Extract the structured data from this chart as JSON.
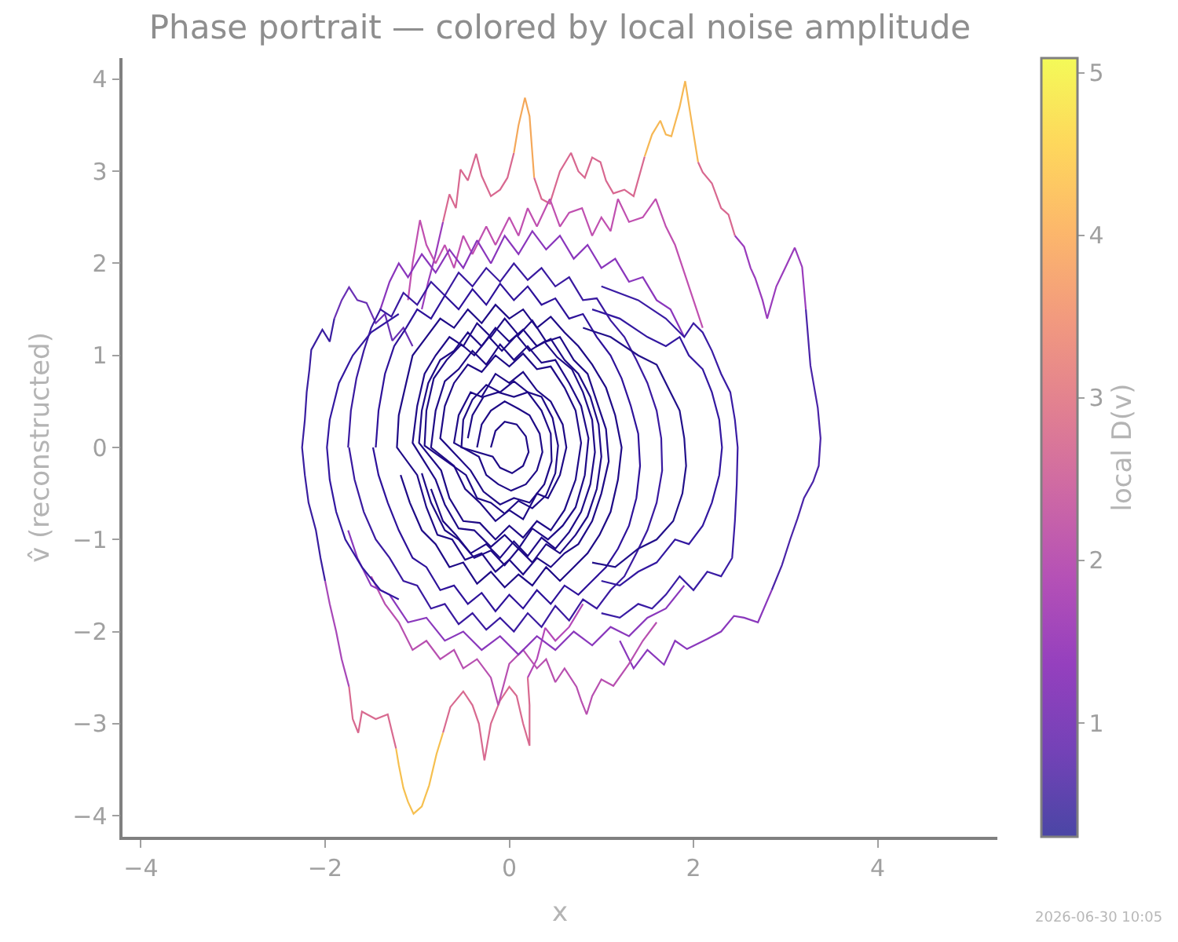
{
  "chart_data": {
    "type": "line",
    "title": "Phase portrait — colored by local noise amplitude",
    "xlabel": "x",
    "ylabel": "v̂ (reconstructed)",
    "clabel": "local D(v)",
    "clim": [
      0.3,
      5.09
    ],
    "cticks": [
      1,
      2,
      3,
      4,
      5
    ],
    "xlim": [
      -4.2,
      5.3
    ],
    "ylim": [
      -4.23,
      4.23
    ],
    "xticks": [
      -4,
      -2,
      0,
      2,
      4
    ],
    "yticks": [
      -4,
      -3,
      -2,
      -1,
      0,
      1,
      2,
      3,
      4
    ],
    "annotations": [
      "2026-06-30 10:05"
    ],
    "series": [
      {
        "color": "#a848b8",
        "x": [
          -1.74,
          -1.82,
          -1.88,
          -1.95,
          -2.0
        ],
        "values": [
          -2.6,
          -2.3,
          -2.0,
          -1.7,
          -1.45
        ]
      },
      {
        "color": "#3a1ea0",
        "x": [
          -2.0,
          -2.05,
          -2.1,
          -2.18,
          -2.22,
          -2.25,
          -2.22,
          -2.2,
          -2.17,
          -2.15,
          -2.03,
          -1.95,
          -1.9
        ],
        "values": [
          -1.45,
          -1.2,
          -0.9,
          -0.6,
          -0.3,
          0.0,
          0.3,
          0.6,
          0.85,
          1.06,
          1.28,
          1.15,
          1.4
        ]
      },
      {
        "color": "#6a30b4",
        "x": [
          -1.9,
          -1.82,
          -1.74,
          -1.65,
          -1.55,
          -1.45,
          -1.35,
          -1.27,
          -1.15,
          -1.05
        ],
        "values": [
          1.4,
          1.6,
          1.74,
          1.6,
          1.57,
          1.35,
          1.45,
          1.16,
          1.3,
          1.1
        ]
      },
      {
        "color": "#9a3cbc",
        "x": [
          -0.95,
          -0.88,
          -0.8,
          -0.72
        ],
        "values": [
          1.5,
          1.8,
          2.1,
          2.45
        ]
      },
      {
        "color": "#d86890",
        "x": [
          -0.72,
          -0.65,
          -0.58,
          -0.53,
          -0.45,
          -0.36,
          -0.3,
          -0.2,
          -0.1,
          -0.02,
          0.05
        ],
        "values": [
          2.45,
          2.75,
          2.6,
          3.02,
          2.9,
          3.19,
          2.95,
          2.73,
          2.8,
          2.93,
          3.2
        ]
      },
      {
        "color": "#f4a85a",
        "x": [
          0.05,
          0.1,
          0.17,
          0.22,
          0.27
        ],
        "values": [
          3.2,
          3.5,
          3.8,
          3.6,
          2.93
        ]
      },
      {
        "color": "#d86890",
        "x": [
          0.27,
          0.35,
          0.44,
          0.55,
          0.67,
          0.75,
          0.82,
          0.9,
          0.99,
          1.05,
          1.13,
          1.25,
          1.35,
          1.47
        ],
        "values": [
          2.93,
          2.7,
          2.65,
          3.0,
          3.2,
          3.0,
          2.93,
          3.15,
          3.1,
          2.9,
          2.76,
          2.8,
          2.73,
          3.16
        ]
      },
      {
        "color": "#f6b855",
        "x": [
          1.47,
          1.55,
          1.64,
          1.7,
          1.76,
          1.85,
          1.91,
          1.97,
          2.05
        ],
        "values": [
          3.16,
          3.4,
          3.55,
          3.4,
          3.38,
          3.7,
          3.98,
          3.6,
          3.1
        ]
      },
      {
        "color": "#d86890",
        "x": [
          2.05,
          2.1,
          2.2,
          2.3,
          2.38,
          2.45
        ],
        "values": [
          3.1,
          2.99,
          2.87,
          2.6,
          2.53,
          2.3
        ]
      },
      {
        "color": "#9a3cbc",
        "x": [
          2.45,
          2.55,
          2.62,
          2.67,
          2.75,
          2.8,
          2.9,
          3.0,
          3.1,
          3.18,
          3.22
        ],
        "values": [
          2.3,
          2.18,
          1.95,
          1.84,
          1.6,
          1.4,
          1.75,
          1.96,
          2.17,
          1.96,
          1.5
        ]
      },
      {
        "color": "#4a24a8",
        "x": [
          3.22,
          3.27,
          3.35,
          3.38,
          3.36,
          3.3,
          3.2,
          3.13,
          3.05,
          2.96,
          2.85
        ],
        "values": [
          1.5,
          0.89,
          0.43,
          0.1,
          -0.2,
          -0.37,
          -0.55,
          -0.77,
          -1.0,
          -1.28,
          -1.55
        ]
      },
      {
        "color": "#8a38bc",
        "x": [
          2.85,
          2.7,
          2.55,
          2.44,
          2.3,
          2.15,
          1.93,
          1.8,
          1.68,
          1.5,
          1.35,
          1.2
        ],
        "values": [
          -1.55,
          -1.9,
          -1.85,
          -1.83,
          -2.0,
          -2.08,
          -2.19,
          -2.1,
          -2.36,
          -2.2,
          -2.4,
          -2.1
        ]
      },
      {
        "color": "#c050b0",
        "x": [
          -1.1,
          -1.05,
          -0.97,
          -0.9,
          -0.8,
          -0.7,
          -0.6,
          -0.5,
          -0.4,
          -0.25,
          -0.15,
          0.0,
          0.1,
          0.2,
          0.3,
          0.44,
          0.55,
          0.65,
          0.79,
          0.9,
          1.0,
          1.1,
          1.18,
          1.3,
          1.45,
          1.59,
          1.7,
          1.8,
          1.9,
          2.0,
          2.1
        ],
        "values": [
          1.6,
          2.0,
          2.47,
          2.2,
          2.0,
          2.2,
          1.95,
          2.3,
          2.1,
          2.4,
          2.2,
          2.5,
          2.3,
          2.6,
          2.4,
          2.7,
          2.4,
          2.55,
          2.6,
          2.3,
          2.5,
          2.35,
          2.7,
          2.45,
          2.5,
          2.7,
          2.4,
          2.2,
          1.9,
          1.6,
          1.3
        ]
      },
      {
        "color": "#8a36bc",
        "x": [
          -1.4,
          -1.3,
          -1.2,
          -1.1,
          -0.95,
          -0.8,
          -0.65,
          -0.5,
          -0.35,
          -0.2,
          -0.05,
          0.1,
          0.25,
          0.4,
          0.55,
          0.7,
          0.85,
          1.0,
          1.15,
          1.3,
          1.45,
          1.6,
          1.75,
          1.9
        ],
        "values": [
          1.5,
          1.8,
          2.0,
          1.85,
          2.1,
          1.9,
          2.15,
          1.95,
          2.25,
          2.0,
          2.3,
          2.1,
          2.35,
          2.15,
          2.3,
          2.05,
          2.2,
          1.95,
          2.05,
          1.8,
          1.85,
          1.6,
          1.5,
          1.2
        ]
      },
      {
        "color": "#b448b8",
        "x": [
          0.8,
          0.65,
          0.5,
          0.39,
          0.3,
          0.2
        ],
        "values": [
          -1.7,
          -1.95,
          -2.1,
          -1.96,
          -2.3,
          -2.5
        ]
      },
      {
        "color": "#d86a90",
        "x": [
          0.2,
          0.22,
          0.22,
          0.15,
          0.08,
          0.0,
          -0.1,
          -0.2,
          -0.27,
          -0.33,
          -0.4,
          -0.5,
          -0.64,
          -0.72
        ],
        "values": [
          -2.5,
          -2.8,
          -3.24,
          -3.0,
          -2.7,
          -2.6,
          -2.75,
          -3.0,
          -3.4,
          -3.0,
          -2.8,
          -2.65,
          -2.82,
          -3.1
        ]
      },
      {
        "color": "#f6c050",
        "x": [
          -0.72,
          -0.79,
          -0.87,
          -0.95,
          -1.04,
          -1.1,
          -1.15,
          -1.2,
          -1.23
        ],
        "values": [
          -3.1,
          -3.33,
          -3.67,
          -3.9,
          -3.98,
          -3.85,
          -3.7,
          -3.45,
          -3.27
        ]
      },
      {
        "color": "#d86a90",
        "x": [
          -1.23,
          -1.32,
          -1.45,
          -1.6,
          -1.64,
          -1.7,
          -1.74
        ],
        "values": [
          -3.27,
          -2.9,
          -2.95,
          -2.87,
          -3.1,
          -2.95,
          -2.6
        ]
      },
      {
        "color": "#b850b0",
        "x": [
          1.6,
          1.45,
          1.3,
          1.13,
          1.0,
          0.9,
          0.84,
          0.78,
          0.73,
          0.6,
          0.5,
          0.4,
          0.3,
          0.15,
          0.0,
          -0.12,
          -0.2,
          -0.35,
          -0.5,
          -0.6,
          -0.75,
          -0.9,
          -1.05,
          -1.2,
          -1.35,
          -1.5
        ],
        "values": [
          -1.9,
          -2.1,
          -2.35,
          -2.59,
          -2.52,
          -2.7,
          -2.9,
          -2.75,
          -2.6,
          -2.4,
          -2.55,
          -2.3,
          -2.4,
          -2.2,
          -2.35,
          -2.8,
          -2.5,
          -2.3,
          -2.4,
          -2.2,
          -2.3,
          -2.1,
          -2.2,
          -1.9,
          -1.7,
          -1.4
        ]
      },
      {
        "color": "#8a38bc",
        "x": [
          1.9,
          1.7,
          1.5,
          1.3,
          1.1,
          0.9,
          0.7,
          0.5,
          0.3,
          0.1,
          -0.1,
          -0.3,
          -0.5,
          -0.7,
          -0.9,
          -1.1,
          -1.3,
          -1.5,
          -1.65,
          -1.75
        ],
        "values": [
          -1.5,
          -1.75,
          -1.85,
          -2.05,
          -1.95,
          -2.15,
          -2.0,
          -2.2,
          -2.05,
          -2.25,
          -2.05,
          -2.2,
          -2.0,
          -2.1,
          -1.85,
          -1.9,
          -1.6,
          -1.5,
          -1.2,
          -0.9
        ]
      },
      {
        "color": "#3a1ca4",
        "x": [
          1.0,
          1.4,
          1.7,
          1.9,
          2.0,
          2.1,
          2.2,
          2.3,
          2.4,
          2.45,
          2.48,
          2.47,
          2.45,
          2.42,
          2.3,
          2.15,
          2.0,
          1.85,
          1.7,
          1.55,
          1.4,
          1.2,
          1.0
        ],
        "values": [
          1.75,
          1.6,
          1.4,
          1.2,
          1.35,
          1.25,
          1.05,
          0.8,
          0.6,
          0.3,
          0.0,
          -0.4,
          -0.8,
          -1.2,
          -1.4,
          -1.35,
          -1.55,
          -1.4,
          -1.6,
          -1.75,
          -1.7,
          -1.85,
          -1.8
        ]
      },
      {
        "color": "#3318a0",
        "x": [
          0.9,
          1.2,
          1.5,
          1.7,
          1.85,
          1.95,
          2.1,
          2.2,
          2.28,
          2.31,
          2.28,
          2.2,
          2.1,
          1.95,
          1.8,
          1.6,
          1.4,
          1.2,
          1.0
        ],
        "values": [
          1.5,
          1.4,
          1.2,
          1.1,
          1.2,
          1.0,
          0.85,
          0.6,
          0.3,
          0.0,
          -0.3,
          -0.6,
          -0.85,
          -1.05,
          -1.0,
          -1.25,
          -1.35,
          -1.5,
          -1.45
        ]
      },
      {
        "color": "#3318a0",
        "x": [
          -1.2,
          -1.5,
          -1.7,
          -1.85,
          -1.95,
          -1.98,
          -1.95,
          -1.88,
          -1.78,
          -1.6,
          -1.4,
          -1.2
        ],
        "values": [
          1.45,
          1.25,
          1.0,
          0.7,
          0.3,
          0.0,
          -0.35,
          -0.7,
          -1.0,
          -1.3,
          -1.55,
          -1.65
        ]
      },
      {
        "color": "#3a1aa0",
        "x": [
          -1.75,
          -1.72,
          -1.66,
          -1.58,
          -1.5,
          -1.4,
          -1.28,
          -1.15,
          -1.0,
          -0.85,
          -0.7,
          -0.55,
          -0.4,
          -0.25,
          -0.1,
          0.05,
          0.2,
          0.35,
          0.5,
          0.65,
          0.8,
          0.95,
          1.1,
          1.25,
          1.38,
          1.5,
          1.6,
          1.65,
          1.66,
          1.6,
          1.5,
          1.38,
          1.25,
          1.1,
          0.95,
          0.8,
          0.65,
          0.5,
          0.35,
          0.2,
          0.05,
          -0.1,
          -0.25,
          -0.4,
          -0.55,
          -0.7,
          -0.85,
          -1.0,
          -1.15,
          -1.3,
          -1.45,
          -1.58,
          -1.68,
          -1.74
        ],
        "values": [
          0.0,
          0.4,
          0.75,
          1.05,
          1.3,
          1.5,
          1.42,
          1.68,
          1.55,
          1.8,
          1.65,
          1.9,
          1.75,
          1.95,
          1.8,
          2.0,
          1.82,
          1.95,
          1.75,
          1.85,
          1.6,
          1.62,
          1.38,
          1.2,
          0.95,
          0.7,
          0.4,
          0.1,
          -0.25,
          -0.6,
          -0.9,
          -1.15,
          -1.4,
          -1.55,
          -1.75,
          -1.65,
          -1.88,
          -1.72,
          -1.95,
          -1.8,
          -2.0,
          -1.85,
          -1.98,
          -1.8,
          -1.92,
          -1.7,
          -1.75,
          -1.5,
          -1.45,
          -1.2,
          -1.0,
          -0.7,
          -0.35,
          0.0
        ]
      },
      {
        "color": "#2e129a",
        "x": [
          -1.45,
          -1.42,
          -1.35,
          -1.25,
          -1.12,
          -1.0,
          -0.85,
          -0.7,
          -0.55,
          -0.4,
          -0.25,
          -0.1,
          0.05,
          0.2,
          0.35,
          0.5,
          0.65,
          0.8,
          0.95,
          1.1,
          1.22,
          1.32,
          1.4,
          1.42,
          1.38,
          1.3,
          1.18,
          1.05,
          0.9,
          0.75,
          0.6,
          0.45,
          0.3,
          0.15,
          0.0,
          -0.15,
          -0.3,
          -0.45,
          -0.6,
          -0.75,
          -0.9,
          -1.05,
          -1.2,
          -1.32,
          -1.42,
          -1.48
        ],
        "values": [
          0.0,
          0.4,
          0.8,
          1.1,
          1.3,
          1.5,
          1.4,
          1.65,
          1.5,
          1.72,
          1.55,
          1.78,
          1.6,
          1.75,
          1.55,
          1.62,
          1.4,
          1.45,
          1.2,
          1.0,
          0.75,
          0.45,
          0.15,
          -0.2,
          -0.55,
          -0.85,
          -1.1,
          -1.3,
          -1.45,
          -1.6,
          -1.5,
          -1.7,
          -1.55,
          -1.75,
          -1.6,
          -1.78,
          -1.58,
          -1.7,
          -1.5,
          -1.55,
          -1.3,
          -1.2,
          -0.9,
          -0.6,
          -0.3,
          0.0
        ]
      },
      {
        "color": "#22108a",
        "x": [
          0.8,
          1.1,
          1.4,
          1.6,
          1.75,
          1.85,
          1.9,
          1.92,
          1.88,
          1.78,
          1.6,
          1.4,
          1.15,
          0.9
        ],
        "values": [
          1.3,
          1.2,
          1.0,
          0.9,
          0.6,
          0.4,
          0.1,
          -0.2,
          -0.5,
          -0.8,
          -1.0,
          -1.1,
          -1.3,
          -1.25
        ]
      },
      {
        "color": "#1e0a86",
        "x": [
          -0.2,
          -0.15,
          -0.05,
          0.08,
          0.18,
          0.21,
          0.15,
          0.03,
          -0.1,
          -0.18,
          -0.52,
          -0.5,
          -0.4,
          -0.25,
          -0.1,
          0.05,
          0.2,
          0.35,
          0.47,
          0.53,
          0.5,
          0.4,
          0.25,
          0.1,
          -0.05,
          -0.2,
          -0.35,
          -0.47,
          -0.92,
          -0.9,
          -0.82,
          -0.68,
          -0.52,
          -0.38,
          -0.22,
          -0.08,
          0.08,
          0.22,
          0.38,
          0.52,
          0.68,
          0.8,
          0.9,
          0.93,
          0.88,
          0.78,
          0.65,
          0.5,
          0.35,
          0.2,
          0.05,
          -0.1,
          -0.25,
          -0.42,
          -0.58,
          -0.72,
          -0.85
        ],
        "values": [
          0.0,
          0.18,
          0.28,
          0.25,
          0.12,
          -0.05,
          -0.2,
          -0.28,
          -0.22,
          -0.1,
          0.0,
          0.3,
          0.52,
          0.68,
          0.6,
          0.72,
          0.6,
          0.55,
          0.32,
          0.02,
          -0.28,
          -0.52,
          -0.66,
          -0.58,
          -0.72,
          -0.6,
          -0.55,
          -0.3,
          0.02,
          0.4,
          0.75,
          0.95,
          1.12,
          1.0,
          1.2,
          1.05,
          1.22,
          1.05,
          1.15,
          0.98,
          0.85,
          0.6,
          0.3,
          -0.05,
          -0.4,
          -0.7,
          -0.92,
          -1.1,
          -0.98,
          -1.18,
          -1.02,
          -1.2,
          -1.05,
          -1.15,
          -0.95,
          -0.8,
          -0.45
        ]
      },
      {
        "color": "#1e0a86",
        "x": [
          -0.45,
          -0.4,
          -0.28,
          -0.12,
          0.05,
          0.2,
          0.35,
          0.45,
          0.46,
          0.38,
          0.22,
          0.05,
          -0.1,
          -0.28,
          -0.42,
          -0.75,
          -0.7,
          -0.6,
          -0.45,
          -0.3,
          -0.15,
          0.0,
          0.15,
          0.3,
          0.45,
          0.6,
          0.72,
          0.78,
          0.72,
          0.6,
          0.45,
          0.3,
          0.15,
          0.0,
          -0.15,
          -0.32,
          -0.5,
          -0.65,
          -0.74,
          -0.98,
          -0.95,
          -0.88,
          -0.75,
          -0.6,
          -0.45,
          -0.3,
          -0.15,
          0.0,
          0.15,
          0.3,
          0.45,
          0.6,
          0.75,
          0.88,
          0.97,
          1.0,
          0.95,
          0.85,
          0.72,
          0.55,
          0.4,
          0.25,
          0.1,
          -0.05,
          -0.2,
          -0.38,
          -0.55,
          -0.7,
          -0.85,
          -0.95
        ],
        "values": [
          0.1,
          0.35,
          0.55,
          0.6,
          0.55,
          0.6,
          0.4,
          0.15,
          -0.15,
          -0.4,
          -0.6,
          -0.55,
          -0.62,
          -0.48,
          -0.25,
          0.1,
          0.45,
          0.7,
          0.9,
          0.82,
          1.0,
          0.88,
          1.02,
          0.85,
          0.88,
          0.65,
          0.4,
          0.05,
          -0.35,
          -0.68,
          -0.9,
          -0.8,
          -0.98,
          -0.85,
          -1.0,
          -0.82,
          -0.8,
          -0.55,
          -0.25,
          0.05,
          0.4,
          0.7,
          0.95,
          1.05,
          1.25,
          1.1,
          1.3,
          1.15,
          1.28,
          1.1,
          1.18,
          0.95,
          0.8,
          0.55,
          0.25,
          -0.1,
          -0.45,
          -0.75,
          -0.95,
          -1.15,
          -1.05,
          -1.25,
          -1.1,
          -1.28,
          -1.12,
          -1.2,
          -1.0,
          -0.9,
          -0.6,
          -0.28
        ]
      },
      {
        "color": "#1e0a86",
        "x": [
          -0.35,
          -0.3,
          -0.2,
          -0.05,
          0.1,
          0.22,
          0.33,
          0.36,
          0.3,
          0.18,
          0.02,
          -0.12,
          -0.25,
          -0.33,
          -0.6,
          -0.55,
          -0.42,
          -0.3,
          -0.15,
          0.0,
          0.15,
          0.3,
          0.45,
          0.58,
          0.62,
          0.55,
          0.42,
          0.3,
          0.15,
          0.0,
          -0.15,
          -0.32,
          -0.48,
          -0.6,
          -0.85,
          -0.8,
          -0.7,
          -0.55,
          -0.4,
          -0.25,
          -0.1,
          0.05,
          0.2,
          0.35,
          0.5,
          0.65,
          0.78,
          0.86,
          0.82,
          0.72,
          0.58,
          0.42,
          0.25,
          0.1,
          -0.05,
          -0.2,
          -0.38,
          -0.55,
          -0.7,
          -0.8,
          -1.05,
          -1.0,
          -0.92,
          -0.8,
          -0.65,
          -0.5,
          -0.35,
          -0.2,
          -0.05,
          0.1,
          0.25,
          0.4,
          0.55,
          0.7,
          0.85,
          0.95,
          1.05,
          1.08,
          1.0,
          0.9,
          0.75,
          0.6,
          0.45,
          0.3,
          0.15,
          0.0,
          -0.15,
          -0.3,
          -0.48,
          -0.62,
          -0.78,
          -0.9,
          -1.0,
          -1.22,
          -1.2,
          -1.12,
          -1.05,
          -0.9,
          -0.75,
          -0.6,
          -0.45,
          -0.3,
          -0.15,
          0.0,
          0.15,
          0.3,
          0.45,
          0.6,
          0.75,
          0.9,
          1.05,
          1.15,
          1.22,
          1.18,
          1.1,
          0.98,
          0.85,
          0.7,
          0.55,
          0.4,
          0.25,
          0.1,
          -0.05,
          -0.2,
          -0.35,
          -0.5,
          -0.65,
          -0.8,
          -0.95,
          -1.08,
          -1.18
        ],
        "values": [
          0,
          0.25,
          0.4,
          0.5,
          0.42,
          0.35,
          0.15,
          -0.05,
          -0.25,
          -0.4,
          -0.47,
          -0.4,
          -0.3,
          -0.1,
          0.05,
          0.35,
          0.6,
          0.55,
          0.8,
          0.7,
          0.82,
          0.62,
          0.5,
          0.25,
          0.0,
          -0.3,
          -0.55,
          -0.5,
          -0.78,
          -0.68,
          -0.8,
          -0.6,
          -0.45,
          -0.2,
          0.0,
          0.4,
          0.72,
          0.85,
          1.05,
          0.9,
          1.12,
          0.95,
          1.1,
          0.92,
          0.95,
          0.7,
          0.45,
          0.1,
          -0.3,
          -0.65,
          -0.85,
          -1.0,
          -0.88,
          -1.1,
          -0.95,
          -1.08,
          -0.9,
          -0.88,
          -0.62,
          -0.35,
          0.05,
          0.45,
          0.8,
          1.0,
          1.2,
          1.1,
          1.35,
          1.2,
          1.4,
          1.22,
          1.38,
          1.15,
          1.2,
          0.95,
          0.8,
          0.5,
          0.2,
          -0.15,
          -0.5,
          -0.8,
          -1.05,
          -1.15,
          -1.3,
          -1.2,
          -1.38,
          -1.22,
          -1.35,
          -1.15,
          -1.22,
          -1.0,
          -0.95,
          -0.65,
          -0.3,
          0.0,
          0.35,
          0.7,
          1.0,
          1.2,
          1.4,
          1.3,
          1.5,
          1.35,
          1.55,
          1.4,
          1.5,
          1.3,
          1.42,
          1.25,
          1.1,
          0.9,
          0.65,
          0.35,
          0.0,
          -0.35,
          -0.7,
          -0.95,
          -1.15,
          -1.3,
          -1.45,
          -1.3,
          -1.5,
          -1.38,
          -1.52,
          -1.35,
          -1.48,
          -1.25,
          -1.3,
          -1.05,
          -0.9,
          -0.6,
          -0.3
        ]
      }
    ]
  }
}
